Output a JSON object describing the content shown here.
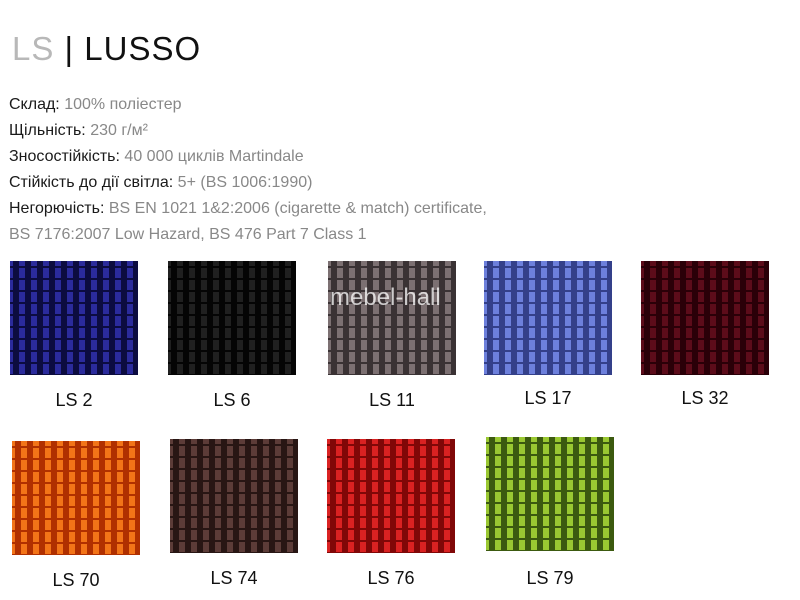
{
  "header": {
    "prefix": "LS",
    "separator": "|",
    "name": "LUSSO"
  },
  "specs": [
    {
      "label": "Склад:",
      "value": "100% поліестер"
    },
    {
      "label": "Щільність:",
      "value": "230 г/м²"
    },
    {
      "label": "Зносостійкість:",
      "value": "40 000 циклів Martindale"
    },
    {
      "label": "Стійкість до дії світла:",
      "value": "5+ (BS 1006:1990)"
    },
    {
      "label": "Негорючість:",
      "value": "BS EN 1021 1&2:2006 (cigarette & match) certificate,"
    },
    {
      "label": "",
      "value": "BS 7176:2007 Low Hazard, BS 476 Part 7 Class 1"
    }
  ],
  "watermark": "mebel-hall",
  "swatches": [
    {
      "code": "LS 2",
      "color": "#2b2b9c",
      "dark": "#0c0c40"
    },
    {
      "code": "LS 6",
      "color": "#202020",
      "dark": "#050505"
    },
    {
      "code": "LS 11",
      "color": "#7c7072",
      "dark": "#3a3234"
    },
    {
      "code": "LS 17",
      "color": "#6d80dc",
      "dark": "#34408a"
    },
    {
      "code": "LS 32",
      "color": "#5c0c1a",
      "dark": "#2a0008"
    },
    {
      "code": "LS 70",
      "color": "#f27418",
      "dark": "#b03000"
    },
    {
      "code": "LS 74",
      "color": "#5c3c38",
      "dark": "#281614"
    },
    {
      "code": "LS 76",
      "color": "#da2222",
      "dark": "#800808"
    },
    {
      "code": "LS 79",
      "color": "#9ac832",
      "dark": "#3c5a10"
    }
  ]
}
